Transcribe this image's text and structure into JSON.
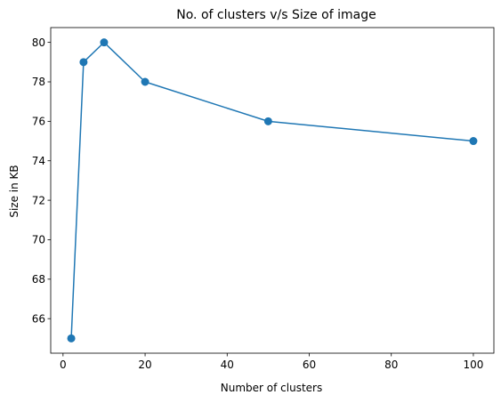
{
  "chart_data": {
    "type": "line",
    "title": "No. of clusters v/s Size of image",
    "xlabel": "Number of clusters",
    "ylabel": "Size in KB",
    "xlim": [
      -3,
      105
    ],
    "ylim": [
      64.25,
      80.75
    ],
    "xticks": [
      0,
      20,
      40,
      60,
      80,
      100
    ],
    "yticks": [
      66,
      68,
      70,
      72,
      74,
      76,
      78,
      80
    ],
    "grid": false,
    "series": [
      {
        "x": [
          2,
          5,
          10,
          20,
          50,
          100
        ],
        "y": [
          65,
          79,
          80,
          78,
          76,
          75
        ],
        "color": "#1f77b4",
        "marker": "circle"
      }
    ]
  }
}
